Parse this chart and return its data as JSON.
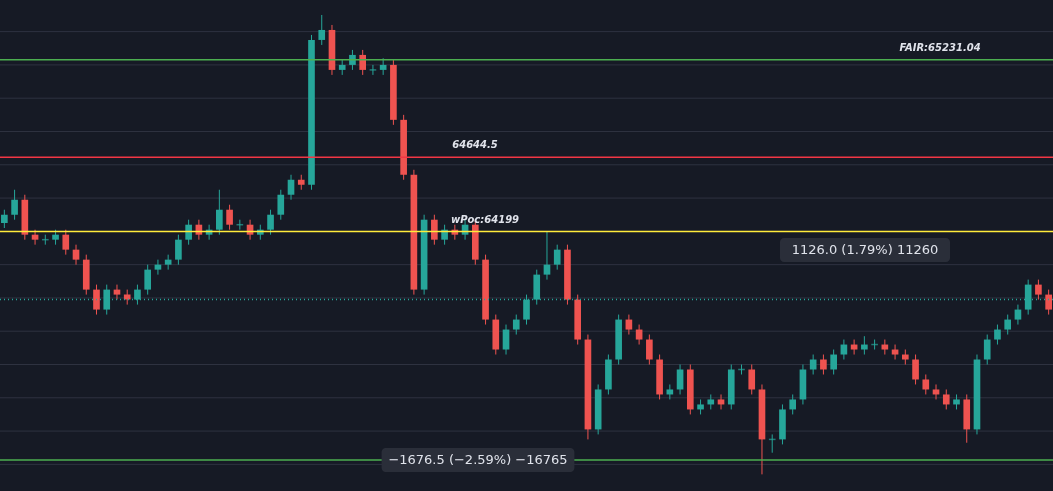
{
  "chart_data": {
    "type": "candlestick",
    "categories": [
      null,
      null,
      null,
      null,
      null,
      null,
      null,
      null,
      null,
      null,
      null,
      null,
      null,
      null,
      null,
      null,
      null,
      null,
      null,
      null,
      null,
      null,
      null,
      null,
      null,
      null,
      null,
      null,
      null,
      null,
      null,
      null,
      null,
      null,
      null,
      null,
      null,
      null,
      null,
      null,
      null,
      null,
      null,
      null,
      null,
      null,
      null,
      null,
      null,
      null,
      null,
      null,
      null,
      null,
      null,
      null,
      null,
      null,
      null,
      null,
      null,
      null,
      null,
      null,
      null,
      null,
      null,
      null,
      null,
      null,
      null,
      null,
      null,
      null,
      null,
      null,
      null,
      null,
      null,
      null,
      null,
      null,
      null,
      null,
      null,
      null,
      null,
      null,
      null,
      null,
      null,
      null,
      null,
      null,
      null,
      null,
      null,
      null,
      null,
      null,
      null,
      null,
      null
    ],
    "ohlc": [
      [
        64250,
        64330,
        64220,
        64300
      ],
      [
        64300,
        64450,
        64270,
        64390
      ],
      [
        64390,
        64420,
        64150,
        64180
      ],
      [
        64180,
        64210,
        64120,
        64150
      ],
      [
        64150,
        64180,
        64120,
        64150
      ],
      [
        64150,
        64210,
        64120,
        64180
      ],
      [
        64180,
        64210,
        64060,
        64090
      ],
      [
        64090,
        64120,
        64000,
        64030
      ],
      [
        64030,
        64060,
        63820,
        63850
      ],
      [
        63850,
        63880,
        63700,
        63730
      ],
      [
        63730,
        63880,
        63700,
        63850
      ],
      [
        63850,
        63880,
        63790,
        63820
      ],
      [
        63820,
        63850,
        63760,
        63790
      ],
      [
        63790,
        63880,
        63760,
        63850
      ],
      [
        63850,
        64000,
        63820,
        63970
      ],
      [
        63970,
        64030,
        63940,
        64000
      ],
      [
        64000,
        64060,
        63970,
        64030
      ],
      [
        64030,
        64180,
        64000,
        64150
      ],
      [
        64150,
        64270,
        64120,
        64240
      ],
      [
        64240,
        64270,
        64150,
        64180
      ],
      [
        64180,
        64240,
        64150,
        64210
      ],
      [
        64210,
        64450,
        64180,
        64330
      ],
      [
        64330,
        64360,
        64210,
        64240
      ],
      [
        64240,
        64270,
        64210,
        64240
      ],
      [
        64240,
        64270,
        64150,
        64180
      ],
      [
        64180,
        64240,
        64150,
        64210
      ],
      [
        64210,
        64330,
        64180,
        64300
      ],
      [
        64300,
        64450,
        64270,
        64420
      ],
      [
        64420,
        64540,
        64390,
        64510
      ],
      [
        64510,
        64540,
        64450,
        64480
      ],
      [
        64480,
        65380,
        64450,
        65350
      ],
      [
        65350,
        65500,
        65320,
        65410
      ],
      [
        65410,
        65440,
        65140,
        65170
      ],
      [
        65170,
        65230,
        65140,
        65200
      ],
      [
        65200,
        65290,
        65170,
        65260
      ],
      [
        65260,
        65290,
        65140,
        65170
      ],
      [
        65170,
        65200,
        65140,
        65170
      ],
      [
        65170,
        65240,
        65140,
        65200
      ],
      [
        65200,
        65230,
        64840,
        64870
      ],
      [
        64870,
        64900,
        64510,
        64540
      ],
      [
        64540,
        64570,
        63820,
        63850
      ],
      [
        63850,
        64300,
        63820,
        64270
      ],
      [
        64270,
        64300,
        64120,
        64150
      ],
      [
        64150,
        64240,
        64120,
        64210
      ],
      [
        64210,
        64240,
        64150,
        64180
      ],
      [
        64180,
        64270,
        64150,
        64240
      ],
      [
        64240,
        64270,
        64000,
        64030
      ],
      [
        64030,
        64060,
        63640,
        63670
      ],
      [
        63670,
        63700,
        63460,
        63490
      ],
      [
        63490,
        63640,
        63460,
        63610
      ],
      [
        63610,
        63700,
        63580,
        63670
      ],
      [
        63670,
        63820,
        63640,
        63790
      ],
      [
        63790,
        63970,
        63760,
        63940
      ],
      [
        63940,
        64200,
        63910,
        64000
      ],
      [
        64000,
        64120,
        63970,
        64090
      ],
      [
        64090,
        64120,
        63760,
        63790
      ],
      [
        63790,
        63820,
        63520,
        63550
      ],
      [
        63550,
        63580,
        62950,
        63010
      ],
      [
        63010,
        63280,
        62980,
        63250
      ],
      [
        63250,
        63460,
        63220,
        63430
      ],
      [
        63430,
        63700,
        63400,
        63670
      ],
      [
        63670,
        63700,
        63580,
        63610
      ],
      [
        63610,
        63640,
        63520,
        63550
      ],
      [
        63550,
        63580,
        63400,
        63430
      ],
      [
        63430,
        63460,
        63190,
        63220
      ],
      [
        63220,
        63280,
        63190,
        63250
      ],
      [
        63250,
        63400,
        63220,
        63370
      ],
      [
        63370,
        63400,
        63100,
        63130
      ],
      [
        63130,
        63190,
        63100,
        63160
      ],
      [
        63160,
        63220,
        63130,
        63190
      ],
      [
        63190,
        63220,
        63130,
        63160
      ],
      [
        63160,
        63400,
        63130,
        63370
      ],
      [
        63370,
        63400,
        63340,
        63370
      ],
      [
        63370,
        63400,
        63220,
        63250
      ],
      [
        63250,
        63280,
        62740,
        62950
      ],
      [
        62950,
        62980,
        62870,
        62950
      ],
      [
        62950,
        63160,
        62920,
        63130
      ],
      [
        63130,
        63220,
        63100,
        63190
      ],
      [
        63190,
        63400,
        63160,
        63370
      ],
      [
        63370,
        63460,
        63340,
        63430
      ],
      [
        63430,
        63460,
        63340,
        63370
      ],
      [
        63370,
        63490,
        63340,
        63460
      ],
      [
        63460,
        63550,
        63430,
        63520
      ],
      [
        63520,
        63550,
        63460,
        63490
      ],
      [
        63490,
        63570,
        63460,
        63520
      ],
      [
        63520,
        63550,
        63490,
        63520
      ],
      [
        63520,
        63550,
        63460,
        63490
      ],
      [
        63490,
        63520,
        63430,
        63460
      ],
      [
        63460,
        63490,
        63400,
        63430
      ],
      [
        63430,
        63460,
        63280,
        63310
      ],
      [
        63310,
        63340,
        63220,
        63250
      ],
      [
        63250,
        63280,
        63190,
        63220
      ],
      [
        63220,
        63250,
        63130,
        63160
      ],
      [
        63160,
        63220,
        63130,
        63190
      ],
      [
        63190,
        63220,
        62930,
        63010
      ],
      [
        63010,
        63460,
        62980,
        63430
      ],
      [
        63430,
        63580,
        63400,
        63550
      ],
      [
        63550,
        63640,
        63520,
        63610
      ],
      [
        63610,
        63700,
        63580,
        63670
      ],
      [
        63670,
        63760,
        63640,
        63730
      ],
      [
        63730,
        63910,
        63700,
        63880
      ],
      [
        63880,
        63910,
        63790,
        63820
      ],
      [
        63820,
        63850,
        63700,
        63730
      ]
    ],
    "ylim": [
      62640,
      65590
    ],
    "yticks": [
      {
        "value": 62800,
        "label": null
      },
      {
        "value": 63000,
        "label": null
      },
      {
        "value": 63200,
        "label": null
      },
      {
        "value": 63400,
        "label": null
      },
      {
        "value": 63600,
        "label": null
      },
      {
        "value": 63800,
        "label": null
      },
      {
        "value": 64000,
        "label": null
      },
      {
        "value": 64200,
        "label": null
      },
      {
        "value": 64400,
        "label": null
      },
      {
        "value": 64600,
        "label": null
      },
      {
        "value": 64800,
        "label": null
      },
      {
        "value": 65000,
        "label": null
      },
      {
        "value": 65200,
        "label": null
      },
      {
        "value": 65400,
        "label": null
      }
    ],
    "grid": "y",
    "tick_labels": false,
    "ref_lines": [
      {
        "axis": "y",
        "value": 65231.04,
        "label": "FAIR:65231.04",
        "color": "#4caf50"
      },
      {
        "axis": "y",
        "value": 64644.5,
        "label": "64644.5",
        "color": "#f23645"
      },
      {
        "axis": "y",
        "value": 64199,
        "label": "wPoc:64199",
        "color": "#ffeb3b"
      },
      {
        "axis": "y",
        "value": 63790,
        "color": "#26a69a",
        "line_style": "dotted"
      },
      {
        "axis": "y",
        "value": 62826.5,
        "color": "#4caf50"
      }
    ],
    "annotations": [
      "1126.0 (1.79%) 11260",
      "−1676.5 (−2.59%) −16765"
    ]
  }
}
